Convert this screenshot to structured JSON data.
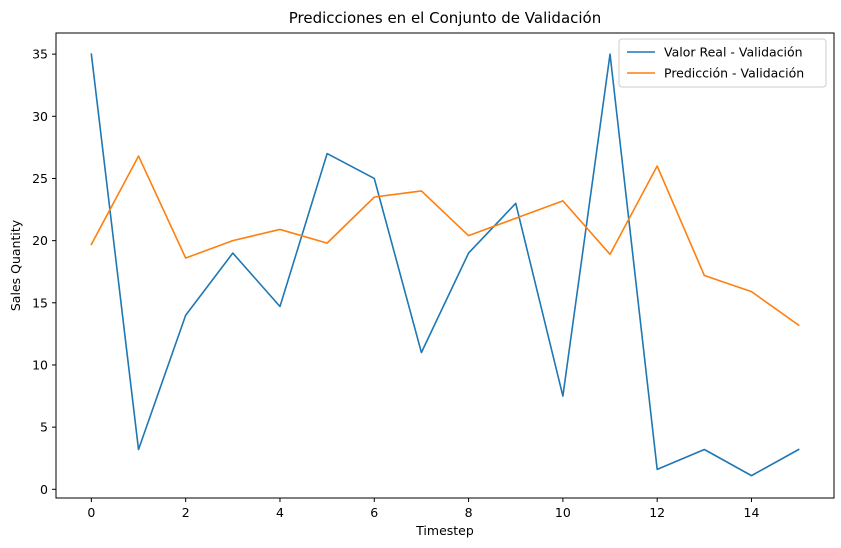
{
  "chart_data": {
    "type": "line",
    "title": "Predicciones en el Conjunto de Validación",
    "xlabel": "Timestep",
    "ylabel": "Sales Quantity",
    "xlim": [
      -0.75,
      15.75
    ],
    "ylim": [
      -0.7,
      36.7
    ],
    "xticks": [
      0,
      2,
      4,
      6,
      8,
      10,
      12,
      14
    ],
    "yticks": [
      0,
      5,
      10,
      15,
      20,
      25,
      30,
      35
    ],
    "grid": false,
    "legend_position": "top-right",
    "x": [
      0,
      1,
      2,
      3,
      4,
      5,
      6,
      7,
      8,
      9,
      10,
      11,
      12,
      13,
      14,
      15
    ],
    "series": [
      {
        "name": "Valor Real - Validación",
        "color": "#1f77b4",
        "values": [
          35,
          3.2,
          14,
          19,
          14.7,
          27,
          25,
          11,
          19,
          23,
          7.5,
          35,
          1.6,
          3.2,
          1.1,
          3.2
        ]
      },
      {
        "name": "Predicción - Validación",
        "color": "#ff7f0e",
        "values": [
          19.7,
          26.8,
          18.6,
          20,
          20.9,
          19.8,
          23.5,
          24,
          20.4,
          21.8,
          23.2,
          18.9,
          26,
          17.2,
          15.9,
          13.2
        ]
      }
    ]
  }
}
